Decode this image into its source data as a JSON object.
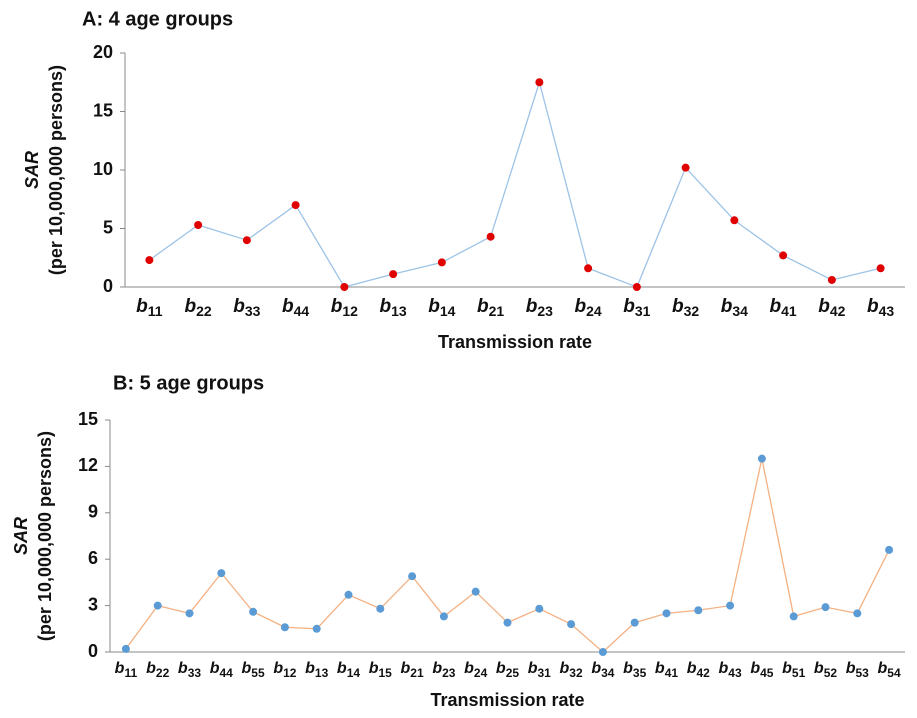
{
  "chart_data": [
    {
      "type": "line",
      "title": "A: 4 age groups",
      "x_label": "Transmission rate",
      "y_label": [
        "SAR",
        "(per 10,000,000 persons)"
      ],
      "categories": [
        "b11",
        "b22",
        "b33",
        "b44",
        "b12",
        "b13",
        "b14",
        "b21",
        "b23",
        "b24",
        "b31",
        "b32",
        "b34",
        "b41",
        "b42",
        "b43"
      ],
      "values": [
        2.3,
        5.3,
        4.0,
        7.0,
        0,
        1.1,
        2.1,
        4.3,
        17.5,
        1.6,
        0,
        10.2,
        5.7,
        2.7,
        0.6,
        1.6
      ],
      "line_color": "#9dc3e6",
      "marker_color": "#e00000",
      "ylim": [
        0,
        20
      ],
      "yticks": [
        0,
        5,
        10,
        15,
        20
      ]
    },
    {
      "type": "line",
      "title": "B: 5 age groups",
      "x_label": "Transmission rate",
      "y_label": [
        "SAR",
        "(per 10,000,000 persons)"
      ],
      "categories": [
        "b11",
        "b22",
        "b33",
        "b44",
        "b55",
        "b12",
        "b13",
        "b14",
        "b15",
        "b21",
        "b23",
        "b24",
        "b25",
        "b31",
        "b32",
        "b34",
        "b35",
        "b41",
        "b42",
        "b43",
        "b45",
        "b51",
        "b52",
        "b53",
        "b54"
      ],
      "values": [
        0.2,
        3.0,
        2.5,
        5.1,
        2.6,
        1.6,
        1.5,
        3.7,
        2.8,
        4.9,
        2.3,
        3.9,
        1.9,
        2.8,
        1.8,
        0,
        1.9,
        2.5,
        2.7,
        3.0,
        12.5,
        2.3,
        2.9,
        2.5,
        6.6
      ],
      "line_color": "#f4b183",
      "marker_color": "#5b9bd5",
      "ylim": [
        0,
        15
      ],
      "yticks": [
        0,
        3,
        6,
        9,
        12,
        15
      ]
    }
  ]
}
